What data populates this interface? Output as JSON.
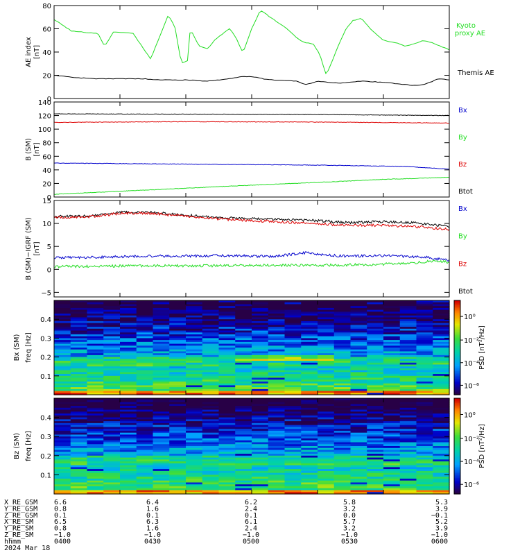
{
  "chart_data": [
    {
      "type": "line",
      "ylabel_lines": [
        "AE index",
        "[nT]"
      ],
      "ylim": [
        0,
        80
      ],
      "yticks": [
        "0",
        "20",
        "40",
        "60",
        "80"
      ],
      "series": [
        {
          "name": "Kyoto proxy AE",
          "name_lines": [
            "Kyoto",
            "proxy AE"
          ],
          "color": "#22dd22",
          "x": [
            0,
            4,
            8,
            14,
            20,
            23,
            27,
            31,
            36,
            40,
            44,
            48,
            52,
            55,
            58,
            61,
            62,
            66,
            70,
            73,
            77,
            80,
            83,
            86,
            90,
            94,
            100,
            106,
            112,
            115,
            118,
            121,
            124,
            127,
            130,
            133,
            136,
            140,
            145,
            150,
            156,
            160,
            164,
            168,
            172,
            176,
            180
          ],
          "values": [
            68,
            63,
            58,
            57,
            56,
            45,
            57,
            57,
            56,
            45,
            34,
            53,
            72,
            62,
            30,
            33,
            60,
            45,
            43,
            50,
            56,
            60,
            52,
            39,
            60,
            76,
            68,
            60,
            50,
            48,
            47,
            38,
            20,
            34,
            48,
            60,
            67,
            69,
            58,
            50,
            48,
            45,
            47,
            50,
            48,
            45,
            42
          ]
        },
        {
          "name": "Themis AE",
          "color": "#000000",
          "x": [
            0,
            10,
            20,
            30,
            40,
            50,
            60,
            70,
            80,
            86,
            90,
            95,
            100,
            110,
            115,
            120,
            130,
            140,
            150,
            160,
            165,
            170,
            175,
            180
          ],
          "values": [
            20,
            18,
            17,
            17,
            17,
            16,
            16,
            15,
            17,
            19,
            19,
            17,
            16,
            15,
            12,
            15,
            13,
            15,
            14,
            12,
            11,
            13,
            17,
            16
          ]
        }
      ]
    },
    {
      "type": "line",
      "ylabel_lines": [
        "B (SM)",
        "[nT]"
      ],
      "ylim": [
        0,
        140
      ],
      "yticks": [
        "0",
        "20",
        "40",
        "60",
        "80",
        "100",
        "120",
        "140"
      ],
      "legend": [
        {
          "label": "Bx",
          "color": "#0000cc"
        },
        {
          "label": "By",
          "color": "#22dd22"
        },
        {
          "label": "Bz",
          "color": "#dd0000"
        },
        {
          "label": "Btot",
          "color": "#000000"
        }
      ],
      "series": [
        {
          "label": "Btot",
          "color": "#000000",
          "x": [
            0,
            60,
            120,
            180
          ],
          "values": [
            122.5,
            122.0,
            121.5,
            120.0
          ]
        },
        {
          "label": "Bz",
          "color": "#dd0000",
          "x": [
            0,
            60,
            120,
            180
          ],
          "values": [
            110.0,
            111.0,
            110.5,
            109.0
          ]
        },
        {
          "label": "Bx",
          "color": "#0000cc",
          "x": [
            0,
            60,
            120,
            160,
            180
          ],
          "values": [
            50.0,
            48.5,
            47.0,
            45.0,
            41.0
          ]
        },
        {
          "label": "By",
          "color": "#22dd22",
          "x": [
            0,
            30,
            60,
            90,
            120,
            150,
            180
          ],
          "values": [
            4.0,
            8.5,
            13.0,
            17.5,
            21.5,
            26.0,
            29.0
          ]
        }
      ]
    },
    {
      "type": "line",
      "ylabel_lines": [
        "B (SM)−IGRF (SM)",
        "[nT]"
      ],
      "ylim": [
        -6,
        15
      ],
      "yticks": [
        "−5",
        "0",
        "5",
        "10",
        "15"
      ],
      "legend": [
        {
          "label": "Bx",
          "color": "#0000cc"
        },
        {
          "label": "By",
          "color": "#22dd22"
        },
        {
          "label": "Bz",
          "color": "#dd0000"
        },
        {
          "label": "Btot",
          "color": "#000000"
        }
      ],
      "series": [
        {
          "label": "Btot",
          "color": "#000000",
          "x": [
            0,
            15,
            30,
            45,
            60,
            75,
            90,
            105,
            120,
            135,
            150,
            165,
            180
          ],
          "values": [
            11.5,
            11.6,
            12.4,
            12.4,
            11.8,
            11.3,
            11.0,
            10.9,
            10.6,
            10.2,
            10.4,
            10.1,
            9.3
          ]
        },
        {
          "label": "Bz",
          "color": "#dd0000",
          "x": [
            0,
            15,
            30,
            45,
            60,
            75,
            90,
            105,
            120,
            135,
            150,
            165,
            180
          ],
          "values": [
            11.3,
            11.4,
            12.2,
            12.2,
            11.5,
            11.0,
            10.6,
            10.3,
            9.9,
            9.6,
            9.6,
            9.3,
            8.7
          ]
        },
        {
          "label": "Bx",
          "color": "#0000cc",
          "x": [
            0,
            20,
            40,
            60,
            80,
            100,
            115,
            130,
            150,
            170,
            180
          ],
          "values": [
            2.6,
            2.6,
            2.9,
            2.9,
            3.0,
            2.8,
            3.6,
            2.9,
            3.0,
            2.6,
            2.0
          ]
        },
        {
          "label": "By",
          "color": "#22dd22",
          "x": [
            0,
            20,
            40,
            60,
            80,
            100,
            120,
            140,
            160,
            175,
            180
          ],
          "values": [
            0.6,
            0.7,
            0.8,
            0.8,
            0.8,
            0.9,
            0.9,
            1.0,
            1.3,
            1.9,
            1.5
          ]
        }
      ]
    },
    {
      "type": "heatmap",
      "ylabel_lines": [
        "Bx (SM)",
        "freq  [Hz]"
      ],
      "ylim": [
        0,
        0.5
      ],
      "yticks": [
        "0.1",
        "0.2",
        "0.3",
        "0.4"
      ],
      "colorbar_label": "PSD [nT²/Hz]",
      "colorbar_ticks": [
        "10⁰",
        "10⁻²",
        "10⁻⁴",
        "10⁻⁶"
      ],
      "seed": 17
    },
    {
      "type": "heatmap",
      "ylabel_lines": [
        "Bz (SM)",
        "freq  [Hz]"
      ],
      "ylim": [
        0,
        0.5
      ],
      "yticks": [
        "0.1",
        "0.2",
        "0.3",
        "0.4"
      ],
      "colorbar_label": "PSD [nT²/Hz]",
      "colorbar_ticks": [
        "10⁰",
        "10⁻²",
        "10⁻⁴",
        "10⁻⁶"
      ],
      "seed": 53
    }
  ],
  "x_axis": {
    "xlim": [
      0,
      180
    ],
    "tick_minutes": [
      0,
      30,
      60,
      90,
      120,
      150,
      180
    ],
    "ephemeris": [
      {
        "label": "X_RE_GSM",
        "values": [
          "6.6",
          "6.4",
          "6.2",
          "5.8",
          "5.3"
        ]
      },
      {
        "label": "Y_RE_GSM",
        "values": [
          "0.8",
          "1.6",
          "2.4",
          "3.2",
          "3.9"
        ]
      },
      {
        "label": "Z_RE_GSM",
        "values": [
          "0.1",
          "0.1",
          "0.1",
          "0.0",
          "−0.1"
        ]
      },
      {
        "label": "X_RE_SM",
        "values": [
          "6.5",
          "6.3",
          "6.1",
          "5.7",
          "5.2"
        ]
      },
      {
        "label": "Y_RE_SM",
        "values": [
          "0.8",
          "1.6",
          "2.4",
          "3.2",
          "3.9"
        ]
      },
      {
        "label": "Z_RE_SM",
        "values": [
          "−1.0",
          "−1.0",
          "−1.0",
          "−1.0",
          "−1.0"
        ]
      },
      {
        "label": "hhmm",
        "values": [
          "0400",
          "0430",
          "0500",
          "0530",
          "0600"
        ]
      }
    ],
    "date": "2024 Mar 18"
  }
}
